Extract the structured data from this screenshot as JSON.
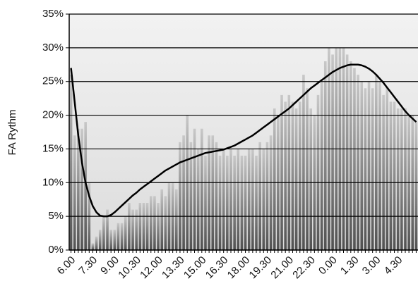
{
  "chart_data": {
    "type": "bar",
    "y_label": "FA Rythm",
    "categories": [
      "6.00",
      null,
      null,
      null,
      null,
      null,
      "7.30",
      null,
      null,
      null,
      null,
      null,
      "9.00",
      null,
      null,
      null,
      null,
      null,
      "10.30",
      null,
      null,
      null,
      null,
      null,
      "12.00",
      null,
      null,
      null,
      null,
      null,
      "13.30",
      null,
      null,
      null,
      null,
      null,
      "15.00",
      null,
      null,
      null,
      null,
      null,
      "16.30",
      null,
      null,
      null,
      null,
      null,
      "18.00",
      null,
      null,
      null,
      null,
      null,
      "19.30",
      null,
      null,
      null,
      null,
      null,
      "21.00",
      null,
      null,
      null,
      null,
      null,
      "22.30",
      null,
      null,
      null,
      null,
      null,
      "0.00",
      null,
      null,
      null,
      null,
      null,
      "1.30",
      null,
      null,
      null,
      null,
      null,
      "3.00",
      null,
      null,
      null,
      null,
      null,
      "4.30",
      null,
      null,
      null,
      null,
      null
    ],
    "series": [
      {
        "type": "bar",
        "color": "#777777",
        "values": [
          26,
          17,
          18,
          18,
          19,
          10,
          1,
          2,
          3,
          5,
          6,
          3,
          3,
          4,
          4,
          5,
          7,
          6,
          6,
          7,
          7,
          7,
          8,
          8,
          7,
          9,
          8,
          10,
          10,
          9,
          16,
          17,
          20,
          16,
          18,
          15,
          18,
          14,
          17,
          17,
          16,
          14,
          15,
          14,
          15,
          14,
          15,
          14,
          14,
          15,
          15,
          14,
          16,
          15,
          16,
          17,
          21,
          20,
          23,
          22,
          23,
          22,
          21,
          22,
          26,
          24,
          21,
          20,
          23,
          25,
          28,
          30,
          29,
          30,
          30,
          30,
          29,
          28,
          27,
          26,
          25,
          24,
          25,
          24,
          26,
          25,
          23,
          24,
          22,
          22,
          21,
          21,
          21,
          20,
          20,
          19
        ]
      },
      {
        "type": "line",
        "color": "#000000",
        "values": [
          27,
          22,
          17,
          13,
          10,
          8,
          6.5,
          5.6,
          5.1,
          5,
          5,
          5.2,
          5.6,
          6.1,
          6.6,
          7.1,
          7.6,
          8.1,
          8.5,
          9,
          9.4,
          9.8,
          10.2,
          10.6,
          11,
          11.4,
          11.8,
          12.1,
          12.4,
          12.7,
          13,
          13.2,
          13.4,
          13.6,
          13.8,
          14,
          14.2,
          14.4,
          14.5,
          14.6,
          14.7,
          14.8,
          14.9,
          15.1,
          15.3,
          15.5,
          15.8,
          16.1,
          16.4,
          16.7,
          17,
          17.4,
          17.8,
          18.2,
          18.6,
          19,
          19.4,
          19.8,
          20.2,
          20.6,
          21,
          21.5,
          22,
          22.5,
          23,
          23.5,
          24,
          24.4,
          24.8,
          25.2,
          25.6,
          26,
          26.4,
          26.7,
          27,
          27.2,
          27.4,
          27.5,
          27.5,
          27.5,
          27.4,
          27.2,
          26.9,
          26.5,
          26,
          25.4,
          24.8,
          24.1,
          23.4,
          22.7,
          22,
          21.3,
          20.6,
          20,
          19.5,
          19
        ]
      }
    ],
    "ylim": [
      0,
      35
    ],
    "yticks": [
      {
        "value": 0,
        "label": "0%"
      },
      {
        "value": 5,
        "label": "5%"
      },
      {
        "value": 10,
        "label": "10%"
      },
      {
        "value": 15,
        "label": "15%"
      },
      {
        "value": 20,
        "label": "20%"
      },
      {
        "value": 25,
        "label": "25%"
      },
      {
        "value": 30,
        "label": "30%"
      },
      {
        "value": 35,
        "label": "35%"
      }
    ],
    "grid": true
  }
}
